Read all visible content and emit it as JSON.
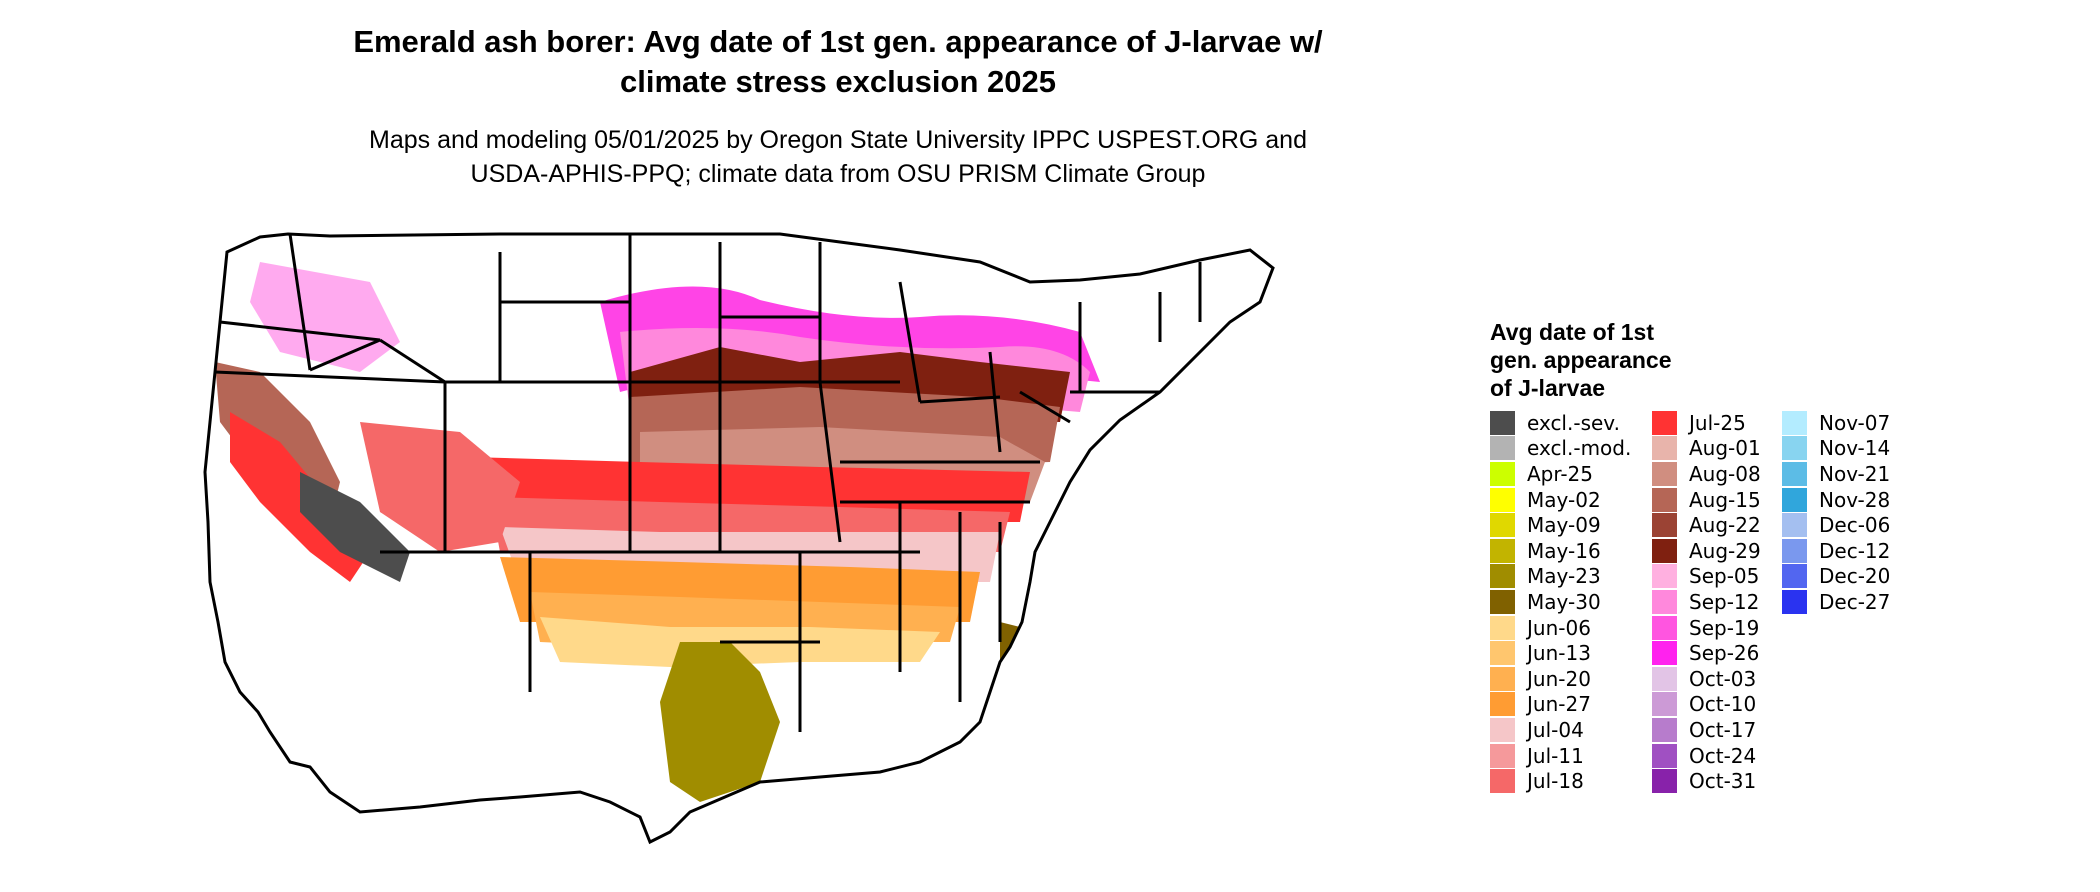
{
  "title": {
    "line1": "Emerald ash borer: Avg date of 1st gen. appearance of J-larvae w/",
    "line2": "climate stress exclusion 2025"
  },
  "subtitle": {
    "line1": "Maps and modeling 05/01/2025 by Oregon State University IPPC USPEST.ORG and",
    "line2": "USDA-APHIS-PPQ; climate data from OSU PRISM Climate Group"
  },
  "map": {
    "region": "contiguous-united-states",
    "boundaries": "state-outlines"
  },
  "legend": {
    "title_line1": "Avg date of 1st",
    "title_line2": "gen. appearance",
    "title_line3": "of J-larvae",
    "columns": [
      [
        {
          "label": "excl.-sev.",
          "color": "#4d4d4d"
        },
        {
          "label": "excl.-mod.",
          "color": "#b3b3b3"
        },
        {
          "label": "Apr-25",
          "color": "#ccff00"
        },
        {
          "label": "May-02",
          "color": "#ffff00"
        },
        {
          "label": "May-09",
          "color": "#e0d800"
        },
        {
          "label": "May-16",
          "color": "#c2b400"
        },
        {
          "label": "May-23",
          "color": "#a08d00"
        },
        {
          "label": "May-30",
          "color": "#806100"
        },
        {
          "label": "Jun-06",
          "color": "#ffd98a"
        },
        {
          "label": "Jun-13",
          "color": "#ffc66e"
        },
        {
          "label": "Jun-20",
          "color": "#ffb050"
        },
        {
          "label": "Jun-27",
          "color": "#ff9c33"
        },
        {
          "label": "Jul-04",
          "color": "#f5c6c8"
        },
        {
          "label": "Jul-11",
          "color": "#f5999b"
        },
        {
          "label": "Jul-18",
          "color": "#f56868"
        }
      ],
      [
        {
          "label": "Jul-25",
          "color": "#ff3333"
        },
        {
          "label": "Aug-01",
          "color": "#e8b4ab"
        },
        {
          "label": "Aug-08",
          "color": "#d08e80"
        },
        {
          "label": "Aug-15",
          "color": "#b56656"
        },
        {
          "label": "Aug-22",
          "color": "#9b4334"
        },
        {
          "label": "Aug-29",
          "color": "#7f2010"
        },
        {
          "label": "Sep-05",
          "color": "#ffb0e0"
        },
        {
          "label": "Sep-12",
          "color": "#ff88dc"
        },
        {
          "label": "Sep-19",
          "color": "#ff55e0"
        },
        {
          "label": "Sep-26",
          "color": "#ff22ee"
        },
        {
          "label": "Oct-03",
          "color": "#e2c4e6"
        },
        {
          "label": "Oct-10",
          "color": "#cc9ad6"
        },
        {
          "label": "Oct-17",
          "color": "#b77ccc"
        },
        {
          "label": "Oct-24",
          "color": "#a050c2"
        },
        {
          "label": "Oct-31",
          "color": "#8822aa"
        }
      ],
      [
        {
          "label": "Nov-07",
          "color": "#b3ecff"
        },
        {
          "label": "Nov-14",
          "color": "#88d4f0"
        },
        {
          "label": "Nov-21",
          "color": "#5cbce6"
        },
        {
          "label": "Nov-28",
          "color": "#30a6dc"
        },
        {
          "label": "Dec-06",
          "color": "#a4bff0"
        },
        {
          "label": "Dec-12",
          "color": "#7a98ee"
        },
        {
          "label": "Dec-20",
          "color": "#5266f0"
        },
        {
          "label": "Dec-27",
          "color": "#2a33f0"
        }
      ]
    ]
  }
}
